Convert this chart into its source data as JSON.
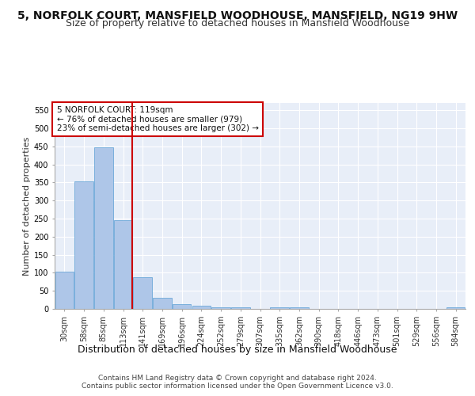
{
  "title": "5, NORFOLK COURT, MANSFIELD WOODHOUSE, MANSFIELD, NG19 9HW",
  "subtitle": "Size of property relative to detached houses in Mansfield Woodhouse",
  "xlabel": "Distribution of detached houses by size in Mansfield Woodhouse",
  "ylabel": "Number of detached properties",
  "bin_labels": [
    "30sqm",
    "58sqm",
    "85sqm",
    "113sqm",
    "141sqm",
    "169sqm",
    "196sqm",
    "224sqm",
    "252sqm",
    "279sqm",
    "307sqm",
    "335sqm",
    "362sqm",
    "390sqm",
    "418sqm",
    "446sqm",
    "473sqm",
    "501sqm",
    "529sqm",
    "556sqm",
    "584sqm"
  ],
  "bar_heights": [
    103,
    353,
    447,
    246,
    88,
    30,
    13,
    9,
    5,
    5,
    0,
    5,
    5,
    0,
    0,
    0,
    0,
    0,
    0,
    0,
    5
  ],
  "bar_color": "#aec6e8",
  "bar_edge_color": "#5a9fd4",
  "vline_color": "#cc0000",
  "annotation_text": "5 NORFOLK COURT: 119sqm\n← 76% of detached houses are smaller (979)\n23% of semi-detached houses are larger (302) →",
  "annotation_box_color": "#ffffff",
  "annotation_box_edge": "#cc0000",
  "ylim": [
    0,
    570
  ],
  "yticks": [
    0,
    50,
    100,
    150,
    200,
    250,
    300,
    350,
    400,
    450,
    500,
    550
  ],
  "bg_color": "#e8eef8",
  "footer": "Contains HM Land Registry data © Crown copyright and database right 2024.\nContains public sector information licensed under the Open Government Licence v3.0.",
  "title_fontsize": 10,
  "subtitle_fontsize": 9,
  "xlabel_fontsize": 9,
  "ylabel_fontsize": 8,
  "tick_fontsize": 7,
  "footer_fontsize": 6.5,
  "annotation_fontsize": 7.5
}
